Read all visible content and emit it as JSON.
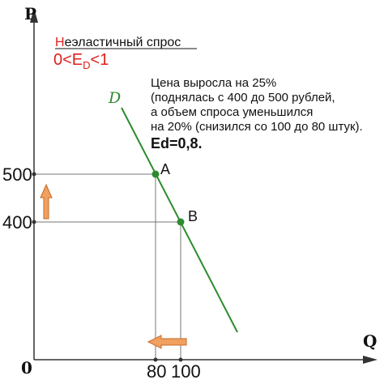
{
  "axes": {
    "y_letter": "P",
    "x_letter": "Q",
    "origin": "0"
  },
  "ticks": {
    "p_high": "500",
    "p_low": "400",
    "q_low": "80",
    "q_high": "100"
  },
  "curve_label": "D",
  "points": {
    "a": "A",
    "b": "B"
  },
  "title": {
    "first_letter": "Н",
    "rest": "еэластичный спрос"
  },
  "elasticity_condition": {
    "left": "0<E",
    "subscript": "D",
    "right": "<1"
  },
  "description": [
    "Цена выросла на 25%",
    "(поднялась с 400 до 500 рублей,",
    "а объем спроса уменьшился",
    "на 20% (снизился со 100 до 80 штук)."
  ],
  "result": "Ed=0,8.",
  "colors": {
    "curve": "#2e8b2e",
    "accent_red": "#e0201c",
    "arrow_fill": "#f0a060",
    "arrow_stroke": "#c86a28"
  },
  "chart_data": {
    "type": "line",
    "series": [
      {
        "name": "D",
        "points": [
          {
            "label": "A",
            "x": 80,
            "y": 500
          },
          {
            "label": "B",
            "x": 100,
            "y": 400
          }
        ]
      }
    ],
    "xlabel": "Q",
    "ylabel": "P",
    "x_ticks": [
      80,
      100
    ],
    "y_ticks": [
      400,
      500
    ]
  }
}
